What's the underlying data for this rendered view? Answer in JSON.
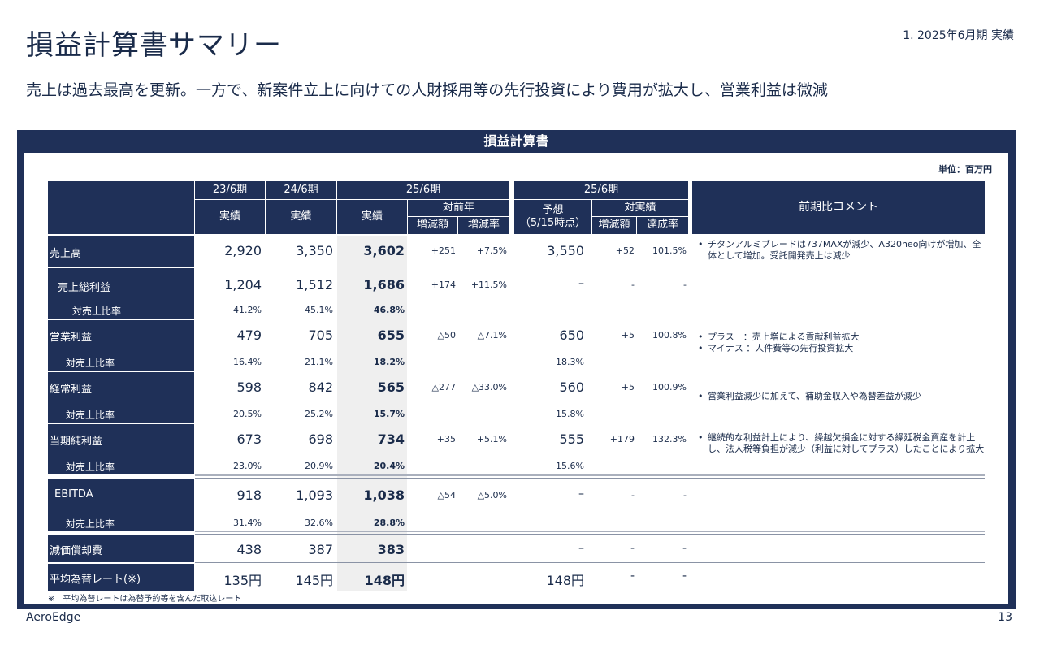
{
  "title": "損益計算書サマリー",
  "section_label": "1. 2025年6月期 実績",
  "subtitle": "売上は過去最高を更新。一方で、新案件立上に向けての人財採用等の先行投資により費用が拡大し、営業利益は微減",
  "panel_title": "損益計算書",
  "unit": "単位：百万円",
  "headers": {
    "fy23": "23/6期",
    "fy24": "24/6期",
    "fy25": "25/6期",
    "fy25b": "25/6期",
    "actual": "実績",
    "yoy": "対前年",
    "change": "増減額",
    "rate": "増減率",
    "forecast": "予想",
    "forecast_date": "（5/15時点）",
    "vs_actual": "対実績",
    "achievement": "達成率",
    "comment": "前期比コメント"
  },
  "rows": [
    {
      "label": "売上高",
      "v23": "2,920",
      "v24": "3,350",
      "v25": "3,602",
      "chg": "+251",
      "rate": "+7.5%",
      "fc": "3,550",
      "fchg": "+52",
      "ach": "101.5%"
    },
    {
      "label": "売上総利益",
      "v23": "1,204",
      "v24": "1,512",
      "v25": "1,686",
      "chg": "+174",
      "rate": "+11.5%",
      "fc": "–",
      "fchg": "-",
      "ach": "-",
      "sublabel": "対売上比率",
      "s23": "41.2%",
      "s24": "45.1%",
      "s25": "46.8%",
      "sfc": ""
    },
    {
      "label": "営業利益",
      "v23": "479",
      "v24": "705",
      "v25": "655",
      "chg": "△50",
      "rate": "△7.1%",
      "fc": "650",
      "fchg": "+5",
      "ach": "100.8%",
      "sublabel": "対売上比率",
      "s23": "16.4%",
      "s24": "21.1%",
      "s25": "18.2%",
      "sfc": "18.3%"
    },
    {
      "label": "経常利益",
      "v23": "598",
      "v24": "842",
      "v25": "565",
      "chg": "△277",
      "rate": "△33.0%",
      "fc": "560",
      "fchg": "+5",
      "ach": "100.9%",
      "sublabel": "対売上比率",
      "s23": "20.5%",
      "s24": "25.2%",
      "s25": "15.7%",
      "sfc": "15.8%"
    },
    {
      "label": "当期純利益",
      "v23": "673",
      "v24": "698",
      "v25": "734",
      "chg": "+35",
      "rate": "+5.1%",
      "fc": "555",
      "fchg": "+179",
      "ach": "132.3%",
      "sublabel": "対売上比率",
      "s23": "23.0%",
      "s24": "20.9%",
      "s25": "20.4%",
      "sfc": "15.6%"
    },
    {
      "label": "EBITDA",
      "v23": "918",
      "v24": "1,093",
      "v25": "1,038",
      "chg": "△54",
      "rate": "△5.0%",
      "fc": "–",
      "fchg": "-",
      "ach": "-",
      "sublabel": "対売上比率",
      "s23": "31.4%",
      "s24": "32.6%",
      "s25": "28.8%",
      "sfc": ""
    },
    {
      "label": "減価償却費",
      "v23": "438",
      "v24": "387",
      "v25": "383",
      "chg": "",
      "rate": "",
      "fc": "–",
      "fchg": "-",
      "ach": "-"
    },
    {
      "label": "平均為替レート(※)",
      "v23": "135円",
      "v24": "145円",
      "v25": "148円",
      "chg": "",
      "rate": "",
      "fc": "148円",
      "fchg": "-",
      "ach": "-"
    }
  ],
  "comments": {
    "sales_1": "チタンアルミブレードは737MAXが減少、A320neo向けが増加、全体として増加。受託開発売上は減少",
    "op_1": "プラス　：売上増による貢献利益拡大",
    "op_2": "マイナス ：人件費等の先行投資拡大",
    "ordinary_1": "営業利益減少に加えて、補助金収入や為替差益が減少",
    "net_1": "継続的な利益計上により、繰越欠損金に対する繰延税金資産を計上し、法人税等負担が減少（利益に対してプラス）したことにより拡大"
  },
  "footnote": "※　平均為替レートは為替予約等を含んだ取込レート",
  "footer": {
    "company": "AeroEdge",
    "page": "13"
  }
}
